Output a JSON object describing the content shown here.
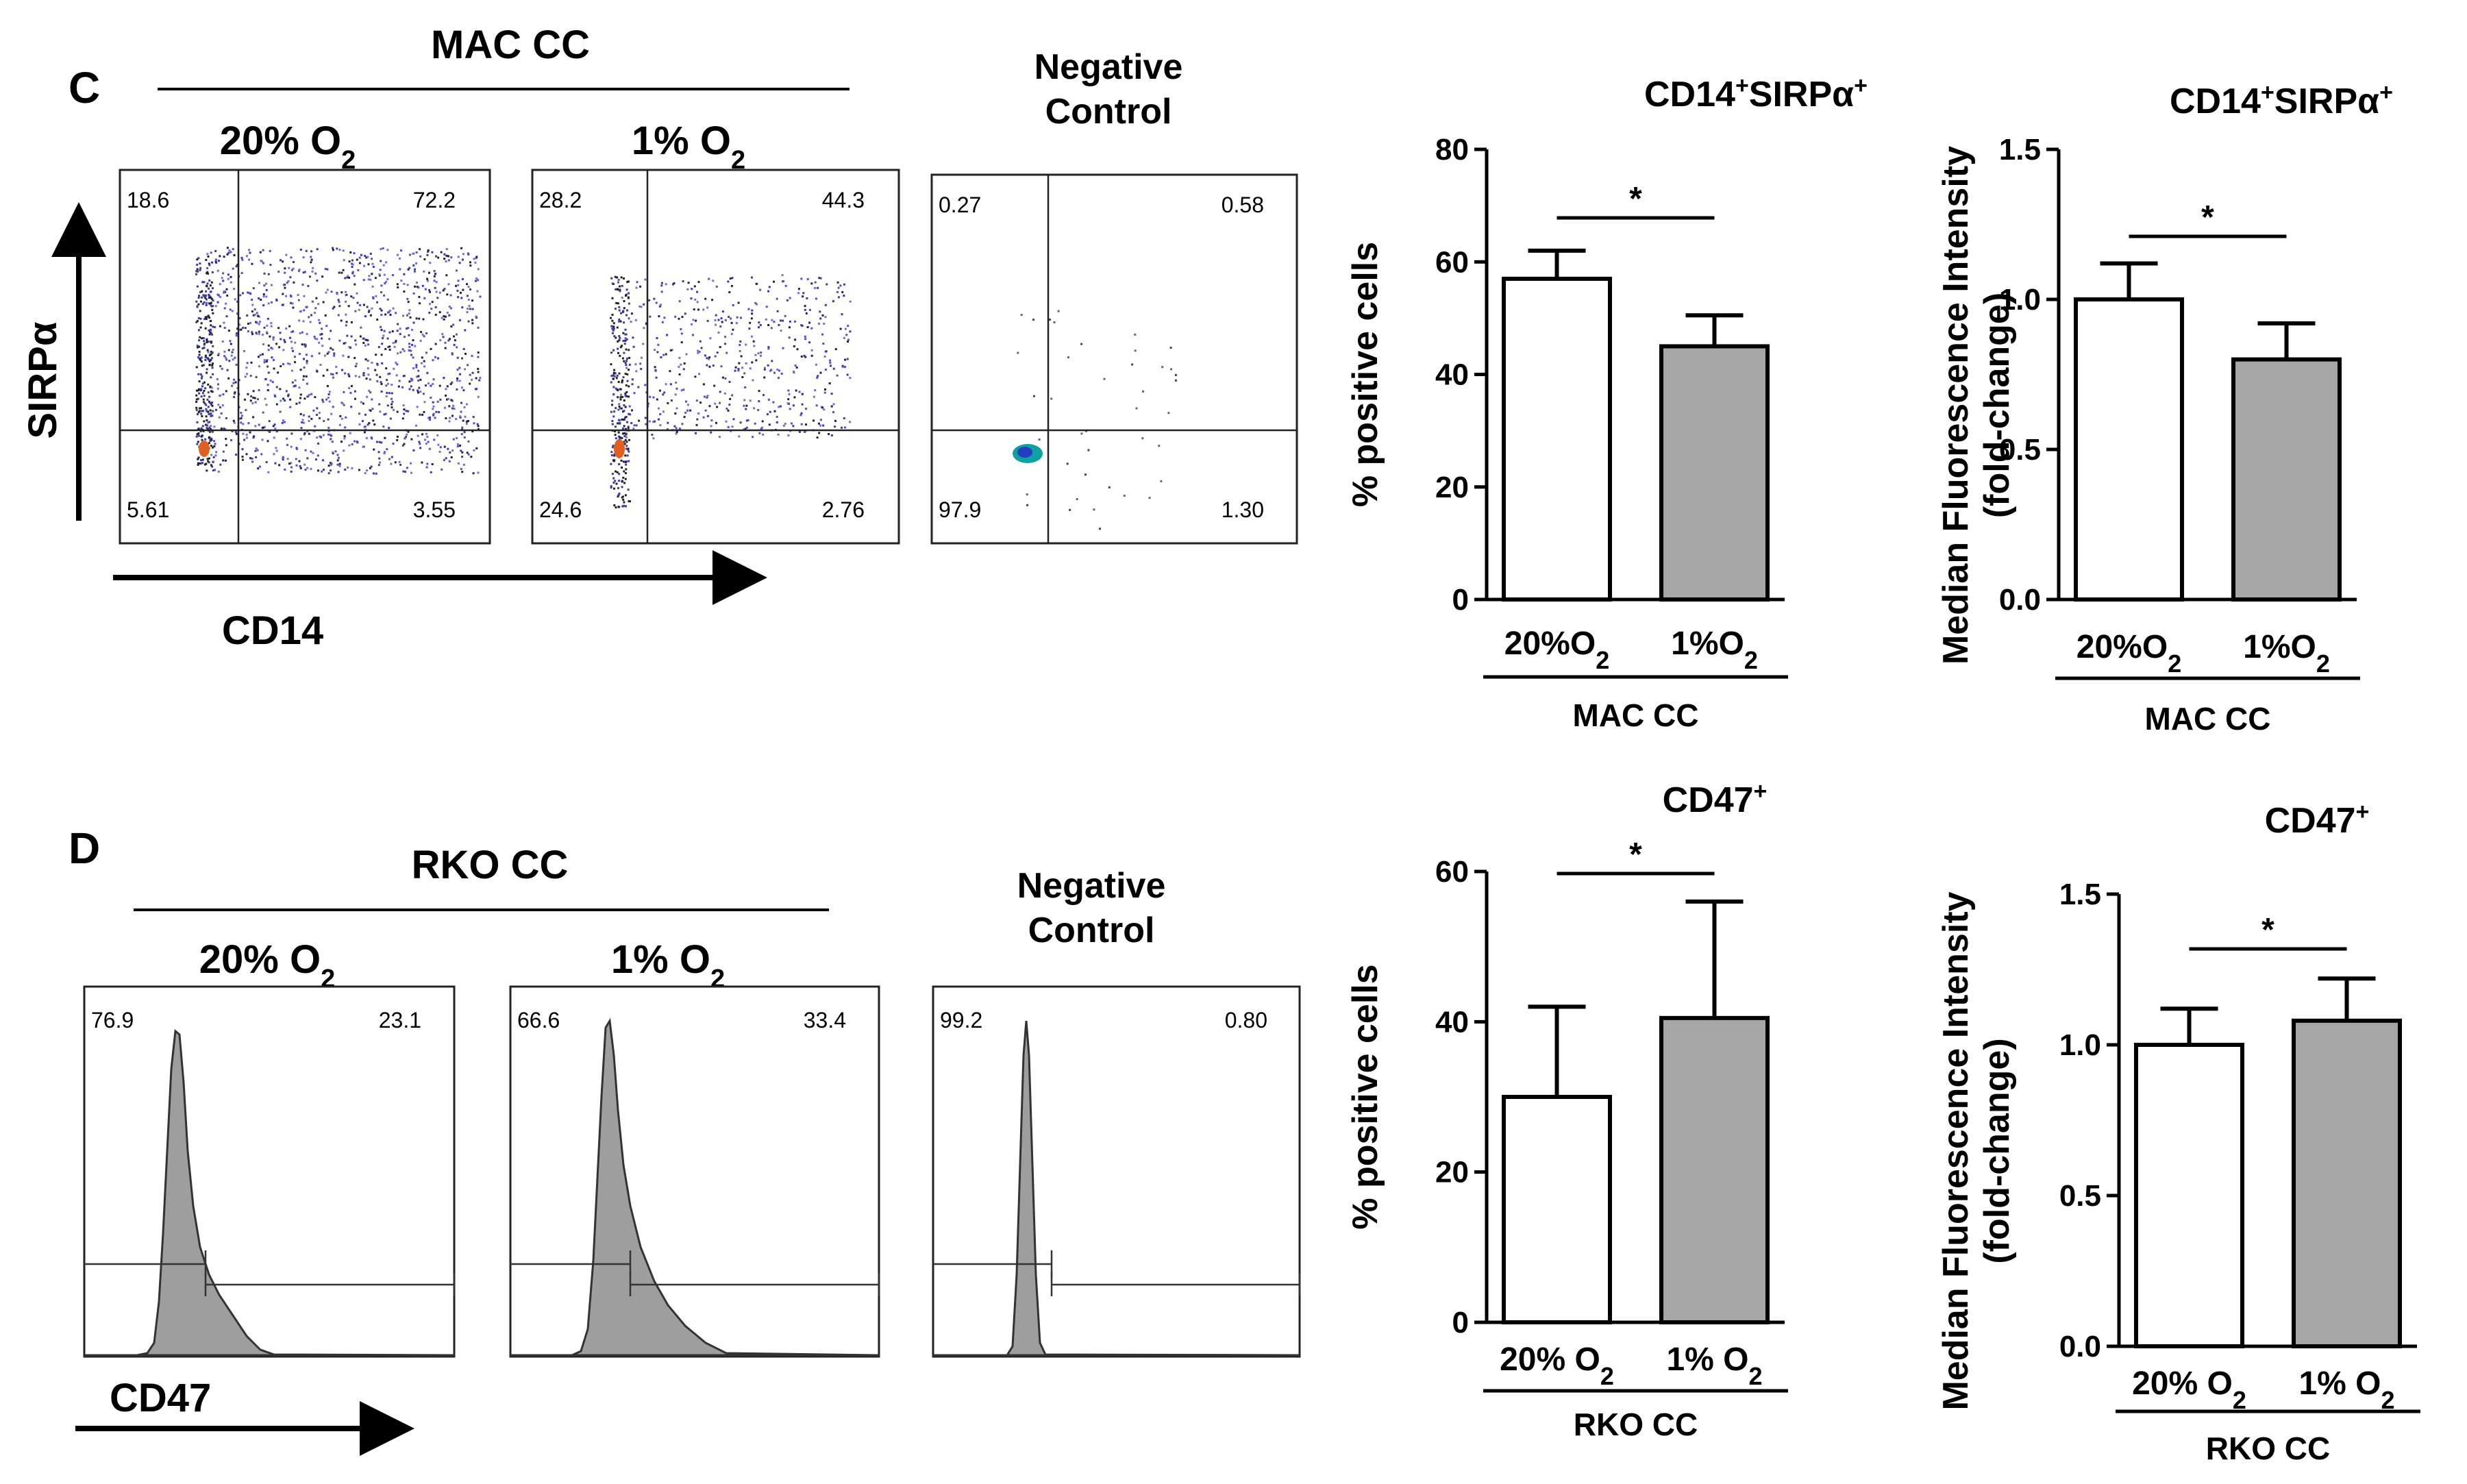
{
  "panel_C": {
    "letter": "C",
    "group_label": "MAC CC",
    "y_axis_label": "SIRPα",
    "x_axis_label": "CD14",
    "plots": [
      {
        "title": "20% O",
        "sub": "2",
        "quadrants": {
          "ul": "18.6",
          "ur": "72.2",
          "ll": "5.61",
          "lr": "3.55"
        }
      },
      {
        "title": "1% O",
        "sub": "2",
        "quadrants": {
          "ul": "28.2",
          "ur": "44.3",
          "ll": "24.6",
          "lr": "2.76"
        }
      },
      {
        "title_line1": "Negative",
        "title_line2": "Control",
        "quadrants": {
          "ul": "0.27",
          "ur": "0.58",
          "ll": "97.9",
          "lr": "1.30"
        }
      }
    ]
  },
  "panel_D": {
    "letter": "D",
    "group_label": "RKO CC",
    "x_axis_label": "CD47",
    "plots": [
      {
        "title": "20% O",
        "sub": "2",
        "left": "76.9",
        "right": "23.1"
      },
      {
        "title": "1% O",
        "sub": "2",
        "left": "66.6",
        "right": "33.4"
      },
      {
        "title_line1": "Negative",
        "title_line2": "Control",
        "left": "99.2",
        "right": "0.80"
      }
    ]
  },
  "chart_data": [
    {
      "type": "bar",
      "title": "CD14+SIRPα+",
      "title_parts": {
        "a": "CD14",
        "sup1": "+",
        "b": "SIRPα",
        "sup2": "+"
      },
      "ylabel": "% positive cells",
      "ylim": [
        0,
        80
      ],
      "yticks": [
        "0",
        "20",
        "40",
        "60",
        "80"
      ],
      "categories": [
        "20%O2",
        "1%O2"
      ],
      "category_parts": [
        {
          "a": "20%O",
          "s": "2"
        },
        {
          "a": "1%O",
          "s": "2"
        }
      ],
      "values": [
        57,
        45
      ],
      "errors": [
        5,
        5.5
      ],
      "group": "MAC CC",
      "significance": "*",
      "colors": [
        "#ffffff",
        "#a6a6a6"
      ]
    },
    {
      "type": "bar",
      "title": "CD14+SIRPα+",
      "title_parts": {
        "a": "CD14",
        "sup1": "+",
        "b": "SIRPα",
        "sup2": "+"
      },
      "ylabel_line1": "Median Fluorescence Intensity",
      "ylabel_line2": "(fold-change)",
      "ylim": [
        0,
        1.5
      ],
      "yticks": [
        "0.0",
        "0.5",
        "1.0",
        "1.5"
      ],
      "categories": [
        "20%O2",
        "1%O2"
      ],
      "category_parts": [
        {
          "a": "20%O",
          "s": "2"
        },
        {
          "a": "1%O",
          "s": "2"
        }
      ],
      "values": [
        1.0,
        0.8
      ],
      "errors": [
        0.12,
        0.12
      ],
      "group": "MAC CC",
      "significance": "*",
      "colors": [
        "#ffffff",
        "#a6a6a6"
      ]
    },
    {
      "type": "bar",
      "title": "CD47+",
      "title_parts": {
        "a": "CD47",
        "sup1": "+"
      },
      "ylabel": "% positive cells",
      "ylim": [
        0,
        60
      ],
      "yticks": [
        "0",
        "20",
        "40",
        "60"
      ],
      "categories": [
        "20% O2",
        "1% O2"
      ],
      "category_parts": [
        {
          "a": "20% O",
          "s": "2"
        },
        {
          "a": "1% O",
          "s": "2"
        }
      ],
      "values": [
        30,
        40.5
      ],
      "errors": [
        12,
        15.5
      ],
      "group": "RKO CC",
      "significance": "*",
      "colors": [
        "#ffffff",
        "#a6a6a6"
      ]
    },
    {
      "type": "bar",
      "title": "CD47+",
      "title_parts": {
        "a": "CD47",
        "sup1": "+"
      },
      "ylabel_line1": "Median Fluorescence Intensity",
      "ylabel_line2": "(fold-change)",
      "ylim": [
        0,
        1.5
      ],
      "yticks": [
        "0.0",
        "0.5",
        "1.0",
        "1.5"
      ],
      "categories": [
        "20% O2",
        "1% O2"
      ],
      "category_parts": [
        {
          "a": "20% O",
          "s": "2"
        },
        {
          "a": "1% O",
          "s": "2"
        }
      ],
      "values": [
        1.0,
        1.08
      ],
      "errors": [
        0.12,
        0.14
      ],
      "group": "RKO CC",
      "significance": "*",
      "colors": [
        "#ffffff",
        "#a6a6a6"
      ]
    }
  ]
}
